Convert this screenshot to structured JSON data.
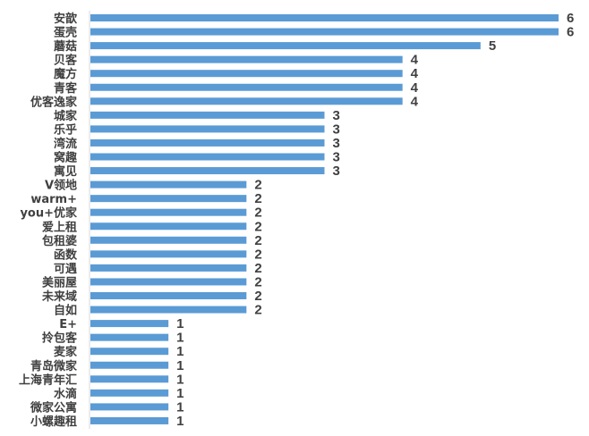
{
  "chart_data": {
    "type": "bar",
    "orientation": "horizontal",
    "title": "",
    "xlabel": "",
    "ylabel": "",
    "categories": [
      "安歆",
      "蛋壳",
      "蘑菇",
      "贝客",
      "魔方",
      "青客",
      "优客逸家",
      "城家",
      "乐乎",
      "湾流",
      "窝趣",
      "寓见",
      "V领地",
      "warm+",
      "you+优家",
      "爱上租",
      "包租婆",
      "函数",
      "可遇",
      "美丽屋",
      "未来域",
      "自如",
      "E+",
      "拎包客",
      "麦家",
      "青岛微家",
      "上海青年汇",
      "水滴",
      "微家公寓",
      "小螺趣租"
    ],
    "values": [
      6,
      6,
      5,
      4,
      4,
      4,
      4,
      3,
      3,
      3,
      3,
      3,
      2,
      2,
      2,
      2,
      2,
      2,
      2,
      2,
      2,
      2,
      1,
      1,
      1,
      1,
      1,
      1,
      1,
      1
    ],
    "xlim": [
      0,
      6
    ],
    "grid": false,
    "legend": "none",
    "bar_color": "#5B9BD5",
    "axis_color": "#D9D9D9",
    "label_color": "#404040"
  }
}
